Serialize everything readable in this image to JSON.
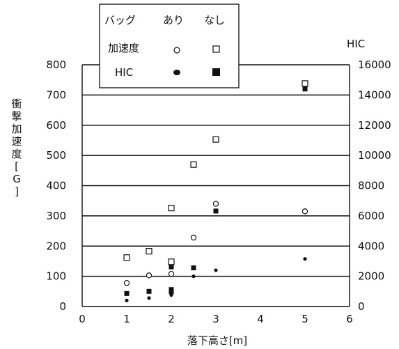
{
  "chart_data": {
    "type": "scatter",
    "xlabel": "落下高さ[m]",
    "ylabel": "衝撃加速度[G]",
    "y2label": "HIC",
    "xlim": [
      0,
      6
    ],
    "ylim": [
      0,
      800
    ],
    "y2lim": [
      0,
      16000
    ],
    "xticks": [
      "0",
      "1",
      "2",
      "3",
      "4",
      "5",
      "6"
    ],
    "yticks": [
      "0",
      "100",
      "200",
      "300",
      "400",
      "500",
      "600",
      "700",
      "800"
    ],
    "y2ticks": [
      "0",
      "2000",
      "4000",
      "6000",
      "8000",
      "10000",
      "12000",
      "14000",
      "16000"
    ],
    "grid": "horizontal",
    "legend": {
      "position": "top-left",
      "header": [
        "バッグ",
        "あり",
        "なし"
      ],
      "rows": [
        "加速度",
        "HIC"
      ]
    },
    "series": [
      {
        "name": "加速度 あり",
        "marker": "open-circle",
        "axis": "left",
        "points": [
          [
            1,
            78
          ],
          [
            1.5,
            103
          ],
          [
            2,
            108
          ],
          [
            2.5,
            228
          ],
          [
            3,
            340
          ],
          [
            5,
            315
          ]
        ]
      },
      {
        "name": "加速度 なし",
        "marker": "open-square",
        "axis": "left",
        "points": [
          [
            1,
            162
          ],
          [
            1.5,
            183
          ],
          [
            2,
            148
          ],
          [
            2,
            326
          ],
          [
            2.5,
            470
          ],
          [
            3,
            553
          ],
          [
            5,
            738
          ]
        ]
      },
      {
        "name": "HIC あり",
        "marker": "filled-circle",
        "axis": "right",
        "points": [
          [
            1,
            400
          ],
          [
            1.5,
            560
          ],
          [
            2,
            760
          ],
          [
            2.5,
            2000
          ],
          [
            3,
            2400
          ],
          [
            5,
            3150
          ]
        ]
      },
      {
        "name": "HIC なし",
        "marker": "filled-square",
        "axis": "right",
        "points": [
          [
            1,
            860
          ],
          [
            1.5,
            1000
          ],
          [
            2,
            980
          ],
          [
            2,
            1120
          ],
          [
            2,
            2620
          ],
          [
            2.5,
            2560
          ],
          [
            3,
            6320
          ],
          [
            5,
            14400
          ]
        ]
      }
    ]
  }
}
